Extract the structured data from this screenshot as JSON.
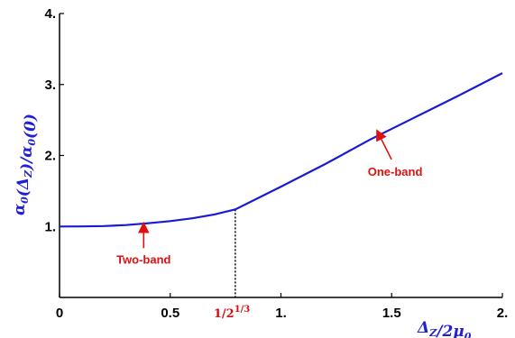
{
  "chart_data": {
    "type": "line",
    "xlim": [
      0,
      2
    ],
    "ylim": [
      0,
      4
    ],
    "x_ticks": [
      {
        "value": 0,
        "label": "0"
      },
      {
        "value": 0.5,
        "label": "0.5"
      },
      {
        "value": 1,
        "label": "1."
      },
      {
        "value": 1.5,
        "label": "1.5"
      },
      {
        "value": 2,
        "label": "2."
      }
    ],
    "y_ticks": [
      {
        "value": 1,
        "label": "1."
      },
      {
        "value": 2,
        "label": "2."
      },
      {
        "value": 3,
        "label": "3."
      },
      {
        "value": 4,
        "label": "4."
      }
    ],
    "xlabel": "Δ_Z/2μ_0",
    "ylabel": "α_0(Δ_Z)/α_0(0)",
    "grid": false,
    "series": [
      {
        "color": "#1a1ad6",
        "points": [
          [
            0,
            1.0
          ],
          [
            0.1,
            1.001
          ],
          [
            0.2,
            1.006
          ],
          [
            0.3,
            1.02
          ],
          [
            0.4,
            1.045
          ],
          [
            0.5,
            1.075
          ],
          [
            0.6,
            1.115
          ],
          [
            0.7,
            1.17
          ],
          [
            0.7937,
            1.24
          ],
          [
            1.0,
            1.56
          ],
          [
            1.2,
            1.88
          ],
          [
            1.4,
            2.22
          ],
          [
            1.6,
            2.53
          ],
          [
            1.8,
            2.84
          ],
          [
            2.0,
            3.16
          ]
        ]
      }
    ],
    "vertical_marker": {
      "x": 0.7937,
      "label": "1/2^{1/3}",
      "color": "#d01010"
    },
    "annotations": [
      {
        "text": "Two-band",
        "arrow_to": [
          0.38,
          1.05
        ]
      },
      {
        "text": "One-band",
        "arrow_to": [
          1.43,
          2.35
        ]
      }
    ]
  }
}
